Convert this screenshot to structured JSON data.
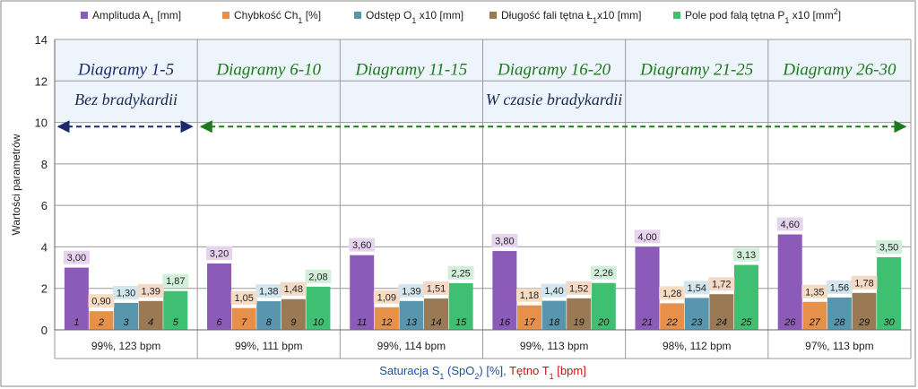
{
  "chart_data": {
    "type": "bar",
    "categories": [
      "99%, 123 bpm",
      "99%, 111 bpm",
      "99%, 114 bpm",
      "99%, 113 bpm",
      "98%, 112 bpm",
      "97%, 113 bpm"
    ],
    "group_titles": [
      "Diagramy 1-5",
      "Diagramy 6-10",
      "Diagramy 11-15",
      "Diagramy 16-20",
      "Diagramy 21-25",
      "Diagramy 26-30"
    ],
    "group_title_colors": [
      "#1a2a6c",
      "#1e7a1e",
      "#1e7a1e",
      "#1e7a1e",
      "#1e7a1e",
      "#1e7a1e"
    ],
    "series": [
      {
        "name": "Amplituda A",
        "name_sub": "1",
        "name_suffix": " [mm]",
        "color": "#8c5ab8",
        "label_bg": "#e6d4ef",
        "values": [
          3.0,
          3.2,
          3.6,
          3.8,
          4.0,
          4.6
        ],
        "labels": [
          "3,00",
          "3,20",
          "3,60",
          "3,80",
          "4,00",
          "4,60"
        ],
        "numbers": [
          "1",
          "6",
          "11",
          "16",
          "21",
          "26"
        ]
      },
      {
        "name": "Chybkość Ch",
        "name_sub": "1",
        "name_suffix": " [%]",
        "color": "#e6904a",
        "label_bg": "#f7dcc4",
        "values": [
          0.9,
          1.05,
          1.09,
          1.18,
          1.28,
          1.35
        ],
        "labels": [
          "0,90",
          "1,05",
          "1,09",
          "1,18",
          "1,28",
          "1,35"
        ],
        "numbers": [
          "2",
          "7",
          "12",
          "17",
          "22",
          "27"
        ]
      },
      {
        "name": "Odstęp O",
        "name_sub": "1",
        "name_suffix": " x10 [mm]",
        "color": "#5896ad",
        "label_bg": "#d2e6ee",
        "values": [
          1.3,
          1.38,
          1.39,
          1.4,
          1.54,
          1.56
        ],
        "labels": [
          "1,30",
          "1,38",
          "1,39",
          "1,40",
          "1,54",
          "1,56"
        ],
        "numbers": [
          "3",
          "8",
          "13",
          "18",
          "23",
          "28"
        ]
      },
      {
        "name": "Długość fali tętna Ł",
        "name_sub": "1",
        "name_suffix": "x10 [mm]",
        "color": "#9a7a55",
        "label_bg": "#f3d9c6",
        "values": [
          1.39,
          1.48,
          1.51,
          1.52,
          1.72,
          1.78
        ],
        "labels": [
          "1,39",
          "1,48",
          "1,51",
          "1,52",
          "1,72",
          "1,78"
        ],
        "numbers": [
          "4",
          "9",
          "14",
          "19",
          "24",
          "29"
        ]
      },
      {
        "name": "Pole pod falą tętna P",
        "name_sub": "1",
        "name_suffix": " x10 [mm",
        "name_sup": "2",
        "name_end": "]",
        "color": "#3fbf72",
        "label_bg": "#d2efd9",
        "values": [
          1.87,
          2.08,
          2.25,
          2.26,
          3.13,
          3.5
        ],
        "labels": [
          "1,87",
          "2,08",
          "2,25",
          "2,26",
          "3,13",
          "3,50"
        ],
        "numbers": [
          "5",
          "10",
          "15",
          "20",
          "25",
          "30"
        ]
      }
    ],
    "ylabel": "Wartości parametrów",
    "ylim": [
      0,
      14
    ],
    "yticks": [
      "0",
      "2",
      "4",
      "6",
      "8",
      "10",
      "12",
      "14"
    ],
    "grid": true,
    "legend_position": "top",
    "regions": [
      {
        "label": "Bez bradykardii",
        "groups": [
          0,
          0
        ],
        "arrow_color": "#1a2a6c"
      },
      {
        "label": "W czasie bradykardii",
        "groups": [
          1,
          5
        ],
        "arrow_color": "#1e7a1e"
      }
    ],
    "arrow_y": 9.8,
    "xlabel": {
      "part1": "Saturacja S",
      "part1_sub": "1",
      "part1_mid": " (SpO",
      "part1_sub2": "2",
      "part1_end": ") [%],",
      "part2": "Tętno T",
      "part2_sub": "1",
      "part2_end": " [bpm]",
      "color1": "#1f4f9c",
      "color2": "#c0141a"
    }
  }
}
